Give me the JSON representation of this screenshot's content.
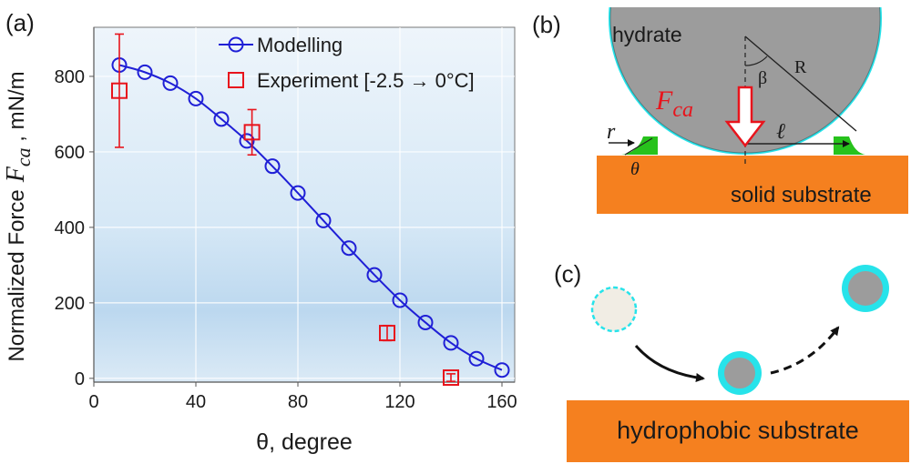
{
  "panels": {
    "a": "(a)",
    "b": "(b)",
    "c": "(c)"
  },
  "chart_data": {
    "type": "line",
    "xlabel": "θ, degree",
    "ylabel": "Normalized Force",
    "ylabel_symbol": "F",
    "ylabel_subscript": "ca",
    "ylabel_unit": " , mN/m",
    "xlim": [
      0,
      165
    ],
    "ylim": [
      -10,
      930
    ],
    "xticks": [
      0,
      40,
      80,
      120,
      160
    ],
    "yticks": [
      0,
      200,
      400,
      600,
      800
    ],
    "grid": true,
    "legend_position": "top-right",
    "series": [
      {
        "name": "Modelling",
        "marker": "circle",
        "color": "#1f1fd6",
        "x": [
          10,
          20,
          30,
          40,
          50,
          60,
          70,
          80,
          90,
          100,
          110,
          120,
          130,
          140,
          150,
          160
        ],
        "y": [
          830,
          811,
          782,
          741,
          687,
          629,
          562,
          491,
          418,
          345,
          274,
          207,
          148,
          94,
          52,
          22
        ]
      },
      {
        "name": "Experiment [-2.5 → 0°C]",
        "marker": "square",
        "color": "#e8141c",
        "x": [
          10,
          62,
          115,
          140
        ],
        "y": [
          762,
          652,
          120,
          2
        ],
        "err": [
          150,
          60,
          20,
          10
        ]
      }
    ]
  },
  "diagram_b": {
    "hydrate_label": "hydrate",
    "force_symbol": "F",
    "force_subscript": "ca",
    "beta_label": "β",
    "radius_label": "R",
    "r_label": "r",
    "l_label": "ℓ",
    "theta_label": "θ",
    "substrate_label": "solid substrate",
    "colors": {
      "hydrate": "#9c9c9c",
      "shell": "#27e3ea",
      "substrate": "#f5801f",
      "bridge": "#27c21c",
      "force_arrow": "#e8141c"
    }
  },
  "diagram_c": {
    "substrate_label": "hydrophobic substrate"
  }
}
